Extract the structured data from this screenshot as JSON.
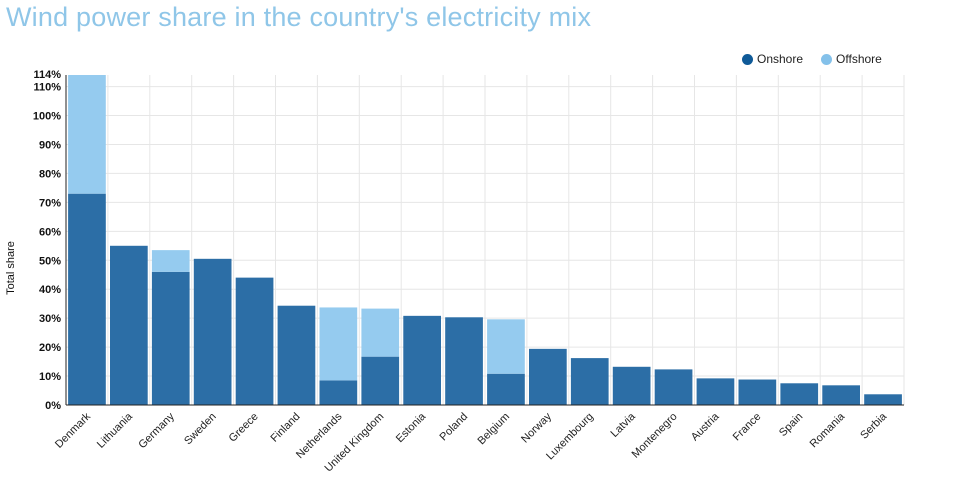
{
  "chart_title": "Wind power share in the country's electricity mix",
  "legend": {
    "onshore_label": "Onshore",
    "offshore_label": "Offshore"
  },
  "colors": {
    "onshore": "#2c6ea6",
    "offshore": "#95cbef",
    "legend_onshore": "#0f5a98",
    "legend_offshore": "#84c1ea"
  },
  "chart_data": {
    "type": "bar",
    "stacked": true,
    "title": "Wind power share in the country's electricity mix",
    "xlabel": "",
    "ylabel": "Total share",
    "ylim": [
      0,
      114
    ],
    "yticks": [
      0,
      10,
      20,
      30,
      40,
      50,
      60,
      70,
      80,
      90,
      100,
      110
    ],
    "ytick_labels": [
      "0%",
      "10%",
      "20%",
      "30%",
      "40%",
      "50%",
      "60%",
      "70%",
      "80%",
      "90%",
      "100%",
      "110%"
    ],
    "ymax_label": "114%",
    "grid": true,
    "legend_position": "top-right",
    "categories": [
      "Denmark",
      "Lithuania",
      "Germany",
      "Sweden",
      "Greece",
      "Finland",
      "Netherlands",
      "United Kingdom",
      "Estonia",
      "Poland",
      "Belgium",
      "Norway",
      "Luxembourg",
      "Latvia",
      "Montenegro",
      "Austria",
      "France",
      "Spain",
      "Romania",
      "Serbia"
    ],
    "series": [
      {
        "name": "Onshore",
        "values": [
          73,
          55,
          46,
          50.5,
          44,
          34.3,
          8.5,
          16.7,
          30.8,
          30.3,
          10.8,
          19.4,
          16.2,
          13.2,
          12.3,
          9.2,
          8.8,
          7.5,
          6.8,
          3.7
        ]
      },
      {
        "name": "Offshore",
        "values": [
          41,
          0,
          7.5,
          0,
          0,
          0,
          25.2,
          16.6,
          0,
          0,
          18.8,
          0,
          0,
          0,
          0,
          0,
          0,
          0,
          0,
          0
        ]
      }
    ]
  }
}
